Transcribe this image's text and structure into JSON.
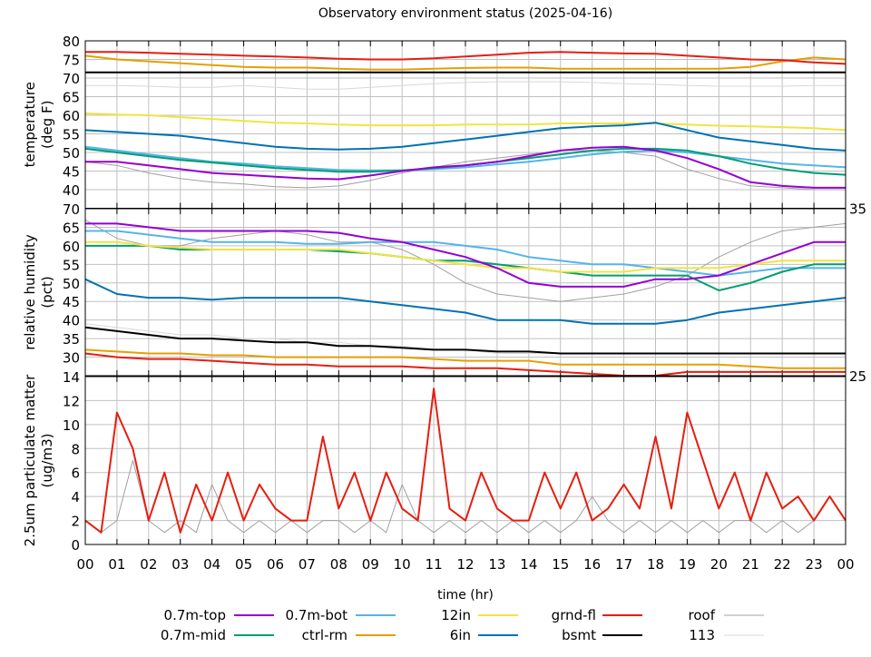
{
  "chart_data": {
    "type": "line",
    "title": "Observatory environment status (2025-04-16)",
    "xlabel": "time (hr)",
    "x_ticks": [
      "00",
      "01",
      "02",
      "03",
      "04",
      "05",
      "06",
      "07",
      "08",
      "09",
      "10",
      "11",
      "12",
      "13",
      "14",
      "15",
      "16",
      "17",
      "18",
      "19",
      "20",
      "21",
      "22",
      "23",
      "00"
    ],
    "xlim": [
      0,
      24
    ],
    "grid": true,
    "legend_placement": "bottom",
    "legend": [
      {
        "name": "0.7m-top",
        "color": "#9400d3"
      },
      {
        "name": "0.7m-mid",
        "color": "#009e73"
      },
      {
        "name": "0.7m-bot",
        "color": "#56b4e9"
      },
      {
        "name": "ctrl-rm",
        "color": "#e69f00"
      },
      {
        "name": "12in",
        "color": "#f0e442"
      },
      {
        "name": "6in",
        "color": "#0072b2"
      },
      {
        "name": "grnd-fl",
        "color": "#e51e10"
      },
      {
        "name": "bsmt",
        "color": "#000000"
      },
      {
        "name": "roof",
        "color": "#a0a0a0"
      },
      {
        "name": "113",
        "color": "#d8d8d8"
      }
    ],
    "panels": [
      {
        "ylabel": [
          "temperature",
          "(deg F)"
        ],
        "ylim": [
          35,
          80
        ],
        "y_ticks": [
          "35",
          "40",
          "45",
          "50",
          "55",
          "60",
          "65",
          "70",
          "75",
          "80"
        ],
        "series": [
          {
            "name": "113",
            "color": "#d8d8d8",
            "values": [
              68,
              68,
              67.8,
              67.5,
              67.5,
              68,
              67.5,
              67,
              67,
              67.5,
              68,
              68.5,
              68.8,
              69,
              69,
              69,
              68.8,
              68.5,
              68.3,
              68,
              67.8,
              67.8,
              67.8,
              68,
              68
            ]
          },
          {
            "name": "roof",
            "color": "#a0a0a0",
            "values": [
              47.5,
              46.5,
              44.5,
              43,
              42,
              41.5,
              40.8,
              40.5,
              41,
              42.5,
              44.5,
              46,
              47.5,
              48.5,
              49.5,
              50.5,
              50.5,
              50,
              49,
              45.5,
              43,
              41,
              40.5,
              40,
              40
            ]
          },
          {
            "name": "bsmt",
            "color": "#000000",
            "values": [
              71.5,
              71.5,
              71.5,
              71.5,
              71.5,
              71.5,
              71.5,
              71.5,
              71.5,
              71.5,
              71.5,
              71.5,
              71.5,
              71.5,
              71.5,
              71.5,
              71.5,
              71.5,
              71.5,
              71.5,
              71.5,
              71.5,
              71.5,
              71.5,
              71.5
            ]
          },
          {
            "name": "ctrl-rm",
            "color": "#e69f00",
            "values": [
              76,
              75,
              74.5,
              74,
              73.5,
              73,
              72.8,
              72.8,
              72.5,
              72.3,
              72.3,
              72.5,
              72.7,
              72.8,
              72.8,
              72.5,
              72.5,
              72.5,
              72.5,
              72.5,
              72.5,
              73,
              74.5,
              75.5,
              75
            ]
          },
          {
            "name": "grnd-fl",
            "color": "#e51e10",
            "values": [
              77,
              77,
              76.8,
              76.5,
              76.3,
              76,
              75.8,
              75.5,
              75.2,
              75,
              75,
              75.3,
              75.8,
              76.3,
              76.8,
              77,
              76.8,
              76.6,
              76.5,
              76,
              75.5,
              75,
              74.8,
              74.2,
              73.8
            ]
          },
          {
            "name": "12in",
            "color": "#f0e442",
            "values": [
              60.5,
              60.2,
              60,
              59.5,
              59,
              58.5,
              58,
              57.8,
              57.5,
              57.3,
              57.3,
              57.3,
              57.5,
              57.5,
              57.5,
              57.8,
              57.8,
              57.8,
              57.8,
              57.5,
              57.2,
              57,
              56.8,
              56.5,
              56
            ]
          },
          {
            "name": "6in",
            "color": "#0072b2",
            "values": [
              56,
              55.5,
              55,
              54.5,
              53.5,
              52.5,
              51.5,
              51,
              50.8,
              51,
              51.5,
              52.5,
              53.5,
              54.5,
              55.5,
              56.5,
              57,
              57.3,
              58,
              56,
              54,
              53,
              52,
              51,
              50.5
            ]
          },
          {
            "name": "0.7m-bot",
            "color": "#56b4e9",
            "values": [
              51.5,
              50.5,
              49.5,
              48.5,
              47.5,
              47,
              46.3,
              45.8,
              45.3,
              45.2,
              45.2,
              45.5,
              46,
              46.8,
              47.5,
              48.5,
              49.5,
              50.2,
              50.5,
              50,
              49,
              48,
              47,
              46.5,
              46
            ]
          },
          {
            "name": "0.7m-mid",
            "color": "#009e73",
            "values": [
              51,
              50,
              49,
              48,
              47.3,
              46.5,
              45.8,
              45.3,
              44.8,
              44.8,
              45.2,
              45.8,
              46.5,
              47.5,
              48.5,
              49.5,
              50.5,
              51,
              51,
              50.5,
              49,
              47,
              45.5,
              44.5,
              44
            ]
          },
          {
            "name": "0.7m-top",
            "color": "#9400d3",
            "values": [
              47.5,
              47.5,
              46.5,
              45.5,
              44.5,
              44,
              43.5,
              43,
              42.8,
              43.8,
              45,
              46,
              46.5,
              47.5,
              49,
              50.5,
              51.3,
              51.5,
              50.5,
              48.5,
              45.5,
              42,
              41,
              40.5,
              40.5
            ]
          }
        ]
      },
      {
        "ylabel": [
          "relative humidity",
          "(pct)"
        ],
        "ylim": [
          25,
          70
        ],
        "y_ticks": [
          "25",
          "30",
          "35",
          "40",
          "45",
          "50",
          "55",
          "60",
          "65",
          "70"
        ],
        "series": [
          {
            "name": "113",
            "color": "#d8d8d8",
            "values": [
              39,
              38,
              37,
              36,
              36,
              35,
              35,
              34,
              34,
              33,
              33,
              32,
              32,
              31,
              31,
              31,
              31,
              31,
              31,
              31,
              31,
              31,
              31,
              31,
              31
            ]
          },
          {
            "name": "roof",
            "color": "#a0a0a0",
            "values": [
              67,
              62,
              60,
              60,
              62,
              63,
              64,
              63,
              61,
              61,
              59,
              55,
              50,
              47,
              46,
              45,
              46,
              47,
              49,
              52,
              57,
              61,
              64,
              65,
              66
            ]
          },
          {
            "name": "bsmt",
            "color": "#000000",
            "values": [
              38,
              37,
              36,
              35,
              35,
              34.5,
              34,
              34,
              33,
              33,
              32.5,
              32,
              32,
              31.5,
              31.5,
              31,
              31,
              31,
              31,
              31,
              31,
              31,
              31,
              31,
              31
            ]
          },
          {
            "name": "ctrl-rm",
            "color": "#e69f00",
            "values": [
              32,
              31.5,
              31,
              31,
              30.5,
              30.5,
              30,
              30,
              30,
              30,
              30,
              29.5,
              29,
              29,
              29,
              28,
              28,
              28,
              28,
              28,
              28,
              27.5,
              27,
              27,
              27
            ]
          },
          {
            "name": "grnd-fl",
            "color": "#e51e10",
            "values": [
              31,
              30,
              29.5,
              29.5,
              29,
              28.5,
              28,
              28,
              27.5,
              27.5,
              27.5,
              27,
              27,
              27,
              26.5,
              26,
              25.5,
              25,
              24.5,
              26,
              26,
              26,
              26,
              26,
              26
            ]
          },
          {
            "name": "6in",
            "color": "#0072b2",
            "values": [
              51,
              47,
              46,
              46,
              45.5,
              46,
              46,
              46,
              46,
              45,
              44,
              43,
              42,
              40,
              40,
              40,
              39,
              39,
              39,
              40,
              42,
              43,
              44,
              45,
              46
            ]
          },
          {
            "name": "0.7m-bot",
            "color": "#56b4e9",
            "values": [
              64,
              64,
              63,
              62,
              61,
              61,
              61,
              60.5,
              60.5,
              61,
              61,
              61,
              60,
              59,
              57,
              56,
              55,
              55,
              54,
              53,
              52,
              53,
              54,
              54,
              54
            ]
          },
          {
            "name": "0.7m-mid",
            "color": "#009e73",
            "values": [
              60,
              60,
              60,
              59,
              59,
              59,
              59,
              59,
              58.5,
              58,
              57,
              56,
              56,
              55,
              54,
              53,
              52,
              52,
              52,
              52,
              48,
              50,
              53,
              55,
              55
            ]
          },
          {
            "name": "12in",
            "color": "#f0e442",
            "values": [
              61,
              61,
              60,
              59.5,
              59,
              59,
              59,
              59,
              59,
              58,
              57,
              56,
              55,
              54,
              54,
              53,
              53,
              53,
              54,
              54,
              54,
              55,
              56,
              56,
              56
            ]
          },
          {
            "name": "0.7m-top",
            "color": "#9400d3",
            "values": [
              66,
              66,
              65,
              64,
              64,
              64,
              64,
              64,
              63.5,
              62,
              61,
              59,
              57,
              54,
              50,
              49,
              49,
              49,
              51,
              51,
              52,
              55,
              58,
              61,
              61
            ]
          }
        ]
      },
      {
        "ylabel": [
          "2.5um particulate matter",
          "(ug/m3)"
        ],
        "ylim": [
          0,
          14
        ],
        "y_ticks": [
          "0",
          "2",
          "4",
          "6",
          "8",
          "10",
          "12",
          "14"
        ],
        "series": [
          {
            "name": "roof",
            "color": "#a0a0a0",
            "values": [
              2,
              1,
              2,
              7,
              2,
              1,
              2,
              1,
              5,
              2,
              1,
              2,
              1,
              2,
              1,
              2,
              2,
              1,
              2,
              1,
              5,
              2,
              1,
              2,
              1,
              2,
              1,
              2,
              1,
              2,
              1,
              2,
              4,
              2,
              1,
              2,
              1,
              2,
              1,
              2,
              1,
              2,
              2,
              1,
              2,
              1,
              2,
              4,
              2
            ]
          },
          {
            "name": "grnd-fl",
            "color": "#e51e10",
            "values": [
              2,
              1,
              11,
              8,
              2,
              6,
              1,
              5,
              2,
              6,
              2,
              5,
              3,
              2,
              2,
              9,
              3,
              6,
              2,
              6,
              3,
              2,
              13,
              3,
              2,
              6,
              3,
              2,
              2,
              6,
              3,
              6,
              2,
              3,
              5,
              3,
              9,
              3,
              11,
              7,
              3,
              6,
              2,
              6,
              3,
              4,
              2,
              4,
              2
            ]
          }
        ]
      }
    ]
  }
}
